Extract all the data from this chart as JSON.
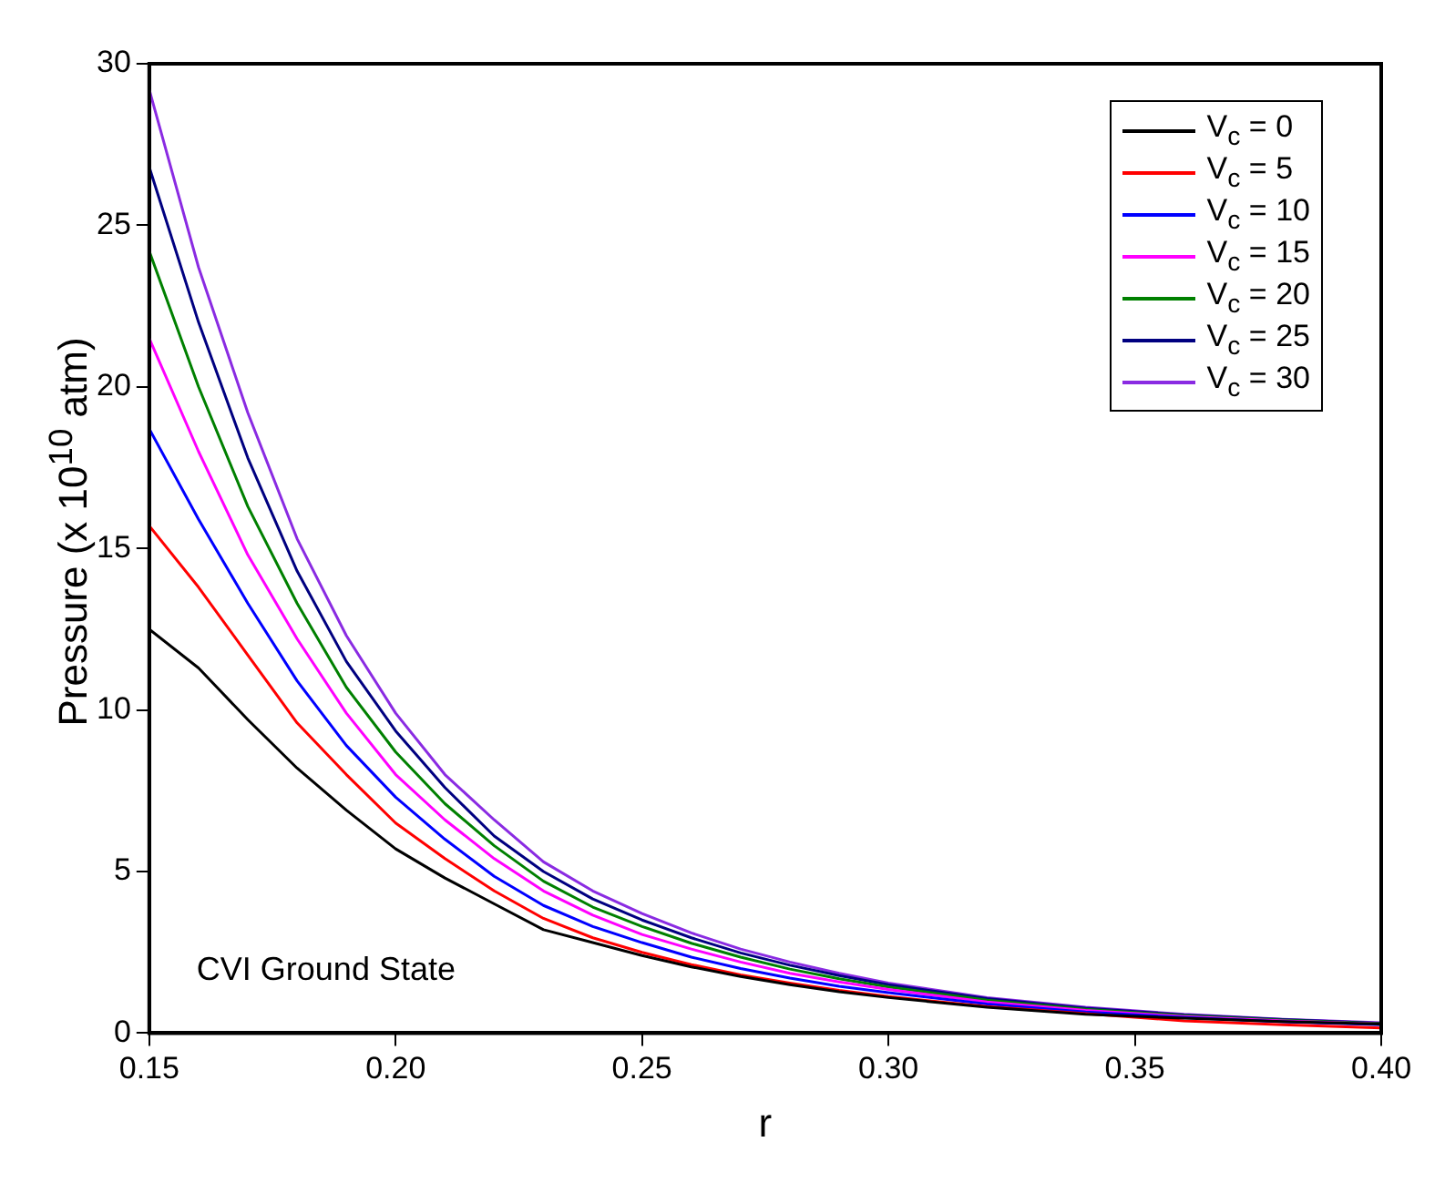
{
  "chart_data": {
    "type": "line",
    "xlabel": "r",
    "ylabel": "Pressure (x 10$^{10}$ atm)",
    "x": [
      0.15,
      0.16,
      0.17,
      0.18,
      0.19,
      0.2,
      0.21,
      0.22,
      0.23,
      0.24,
      0.25,
      0.26,
      0.27,
      0.28,
      0.29,
      0.3,
      0.32,
      0.34,
      0.36,
      0.38,
      0.4
    ],
    "series": [
      {
        "name": "V$_{c}$ = 0",
        "color": "#000000",
        "values": [
          12.5,
          11.3,
          9.7,
          8.2,
          6.9,
          5.7,
          4.8,
          4.0,
          3.2,
          2.8,
          2.4,
          2.05,
          1.75,
          1.5,
          1.28,
          1.1,
          0.8,
          0.58,
          0.46,
          0.36,
          0.28
        ]
      },
      {
        "name": "V$_{c}$ = 5",
        "color": "#ff0000",
        "values": [
          15.7,
          13.8,
          11.7,
          9.6,
          8.0,
          6.5,
          5.4,
          4.4,
          3.55,
          2.95,
          2.5,
          2.12,
          1.8,
          1.55,
          1.32,
          1.13,
          0.82,
          0.6,
          0.38,
          0.26,
          0.16
        ]
      },
      {
        "name": "V$_{c}$ = 10",
        "color": "#0000ff",
        "values": [
          18.7,
          15.9,
          13.3,
          10.9,
          8.9,
          7.3,
          6.0,
          4.85,
          3.95,
          3.3,
          2.8,
          2.35,
          2.0,
          1.7,
          1.45,
          1.25,
          0.9,
          0.65,
          0.48,
          0.35,
          0.26
        ]
      },
      {
        "name": "V$_{c}$ = 15",
        "color": "#ff00ff",
        "values": [
          21.5,
          18.0,
          14.8,
          12.2,
          9.9,
          8.0,
          6.6,
          5.4,
          4.4,
          3.65,
          3.05,
          2.6,
          2.2,
          1.85,
          1.58,
          1.35,
          0.96,
          0.7,
          0.51,
          0.38,
          0.28
        ]
      },
      {
        "name": "V$_{c}$ = 20",
        "color": "#008000",
        "values": [
          24.2,
          20.0,
          16.3,
          13.3,
          10.7,
          8.7,
          7.1,
          5.8,
          4.7,
          3.9,
          3.3,
          2.78,
          2.35,
          1.98,
          1.68,
          1.43,
          1.02,
          0.74,
          0.54,
          0.4,
          0.29
        ]
      },
      {
        "name": "V$_{c}$ = 25",
        "color": "#000080",
        "values": [
          26.8,
          22.0,
          17.8,
          14.3,
          11.5,
          9.35,
          7.6,
          6.1,
          5.0,
          4.15,
          3.5,
          2.95,
          2.48,
          2.1,
          1.78,
          1.5,
          1.07,
          0.77,
          0.56,
          0.42,
          0.3
        ]
      },
      {
        "name": "V$_{c}$ = 30",
        "color": "#8a2be2",
        "values": [
          29.2,
          23.7,
          19.2,
          15.3,
          12.3,
          9.9,
          8.0,
          6.6,
          5.3,
          4.4,
          3.7,
          3.1,
          2.6,
          2.2,
          1.85,
          1.55,
          1.1,
          0.8,
          0.58,
          0.43,
          0.32
        ]
      }
    ],
    "xlim": [
      0.15,
      0.4
    ],
    "xticks": [
      {
        "value": 0.15,
        "label": "0.15"
      },
      {
        "value": 0.2,
        "label": "0.20"
      },
      {
        "value": 0.25,
        "label": "0.25"
      },
      {
        "value": 0.3,
        "label": "0.30"
      },
      {
        "value": 0.35,
        "label": "0.35"
      },
      {
        "value": 0.4,
        "label": "0.40"
      }
    ],
    "ylim": [
      0,
      30
    ],
    "yticks": [
      0,
      5,
      10,
      15,
      20,
      25,
      30
    ],
    "annotations": [
      "CVI Ground State"
    ],
    "legend": "top right",
    "grid": false,
    "marker": "none",
    "line_style": "solid"
  }
}
